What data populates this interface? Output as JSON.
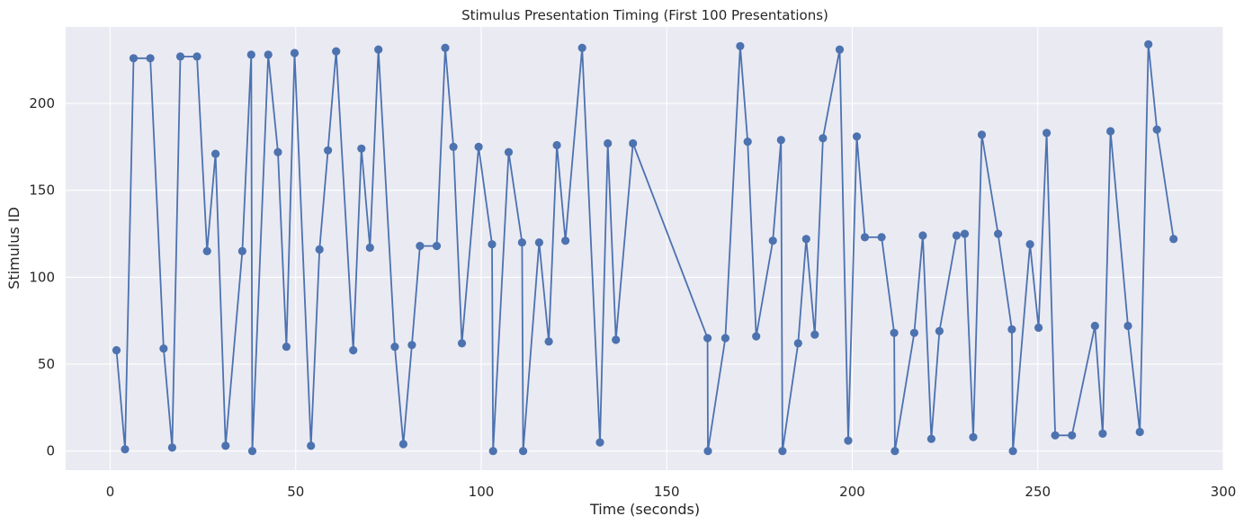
{
  "chart_data": {
    "type": "line",
    "title": "Stimulus Presentation Timing (First 100 Presentations)",
    "xlabel": "Time (seconds)",
    "ylabel": "Stimulus ID",
    "xlim": [
      -12,
      300
    ],
    "ylim": [
      -11,
      244
    ],
    "xticks": [
      0,
      50,
      100,
      150,
      200,
      250,
      300
    ],
    "yticks": [
      0,
      50,
      100,
      150,
      200
    ],
    "grid": true,
    "background_color": "#eaeaf2",
    "series": [
      {
        "color": "#4c72b0",
        "marker": "circle",
        "x": [
          1.7,
          4.0,
          6.3,
          10.8,
          14.4,
          16.7,
          18.9,
          23.4,
          26.1,
          28.4,
          31.1,
          35.6,
          38.0,
          38.3,
          42.6,
          45.2,
          47.5,
          49.7,
          54.1,
          56.4,
          58.7,
          60.9,
          65.5,
          67.7,
          70.0,
          72.3,
          76.7,
          79.0,
          81.3,
          83.5,
          88.0,
          90.3,
          92.5,
          94.8,
          99.3,
          102.9,
          103.2,
          107.4,
          111.0,
          111.3,
          115.6,
          118.2,
          120.4,
          122.7,
          127.2,
          132.0,
          134.1,
          136.3,
          140.9,
          161.0,
          161.1,
          165.8,
          169.8,
          171.8,
          174.1,
          178.6,
          180.8,
          181.2,
          185.4,
          187.6,
          189.9,
          192.1,
          196.6,
          198.9,
          201.2,
          203.4,
          207.9,
          211.3,
          211.5,
          216.7,
          219.0,
          221.3,
          223.5,
          228.1,
          230.3,
          232.6,
          234.9,
          239.3,
          243.0,
          243.3,
          247.9,
          250.2,
          252.4,
          254.7,
          259.2,
          265.4,
          267.5,
          269.6,
          274.3,
          277.5,
          279.8,
          282.1,
          286.6
        ],
        "y": [
          58,
          1,
          226,
          226,
          59,
          2,
          227,
          227,
          115,
          171,
          3,
          115,
          228,
          0,
          228,
          172,
          60,
          229,
          3,
          116,
          173,
          230,
          58,
          174,
          117,
          231,
          60,
          4,
          61,
          118,
          118,
          232,
          175,
          62,
          175,
          119,
          0,
          172,
          120,
          0,
          120,
          63,
          176,
          121,
          232,
          5,
          177,
          64,
          177,
          65,
          0,
          65,
          233,
          178,
          66,
          121,
          179,
          0,
          62,
          122,
          67,
          180,
          231,
          6,
          181,
          123,
          123,
          68,
          0,
          68,
          124,
          7,
          69,
          124,
          125,
          8,
          182,
          125,
          70,
          0,
          119,
          71,
          183,
          9,
          9,
          72,
          10,
          184,
          72,
          11,
          234,
          185,
          122
        ]
      }
    ]
  }
}
